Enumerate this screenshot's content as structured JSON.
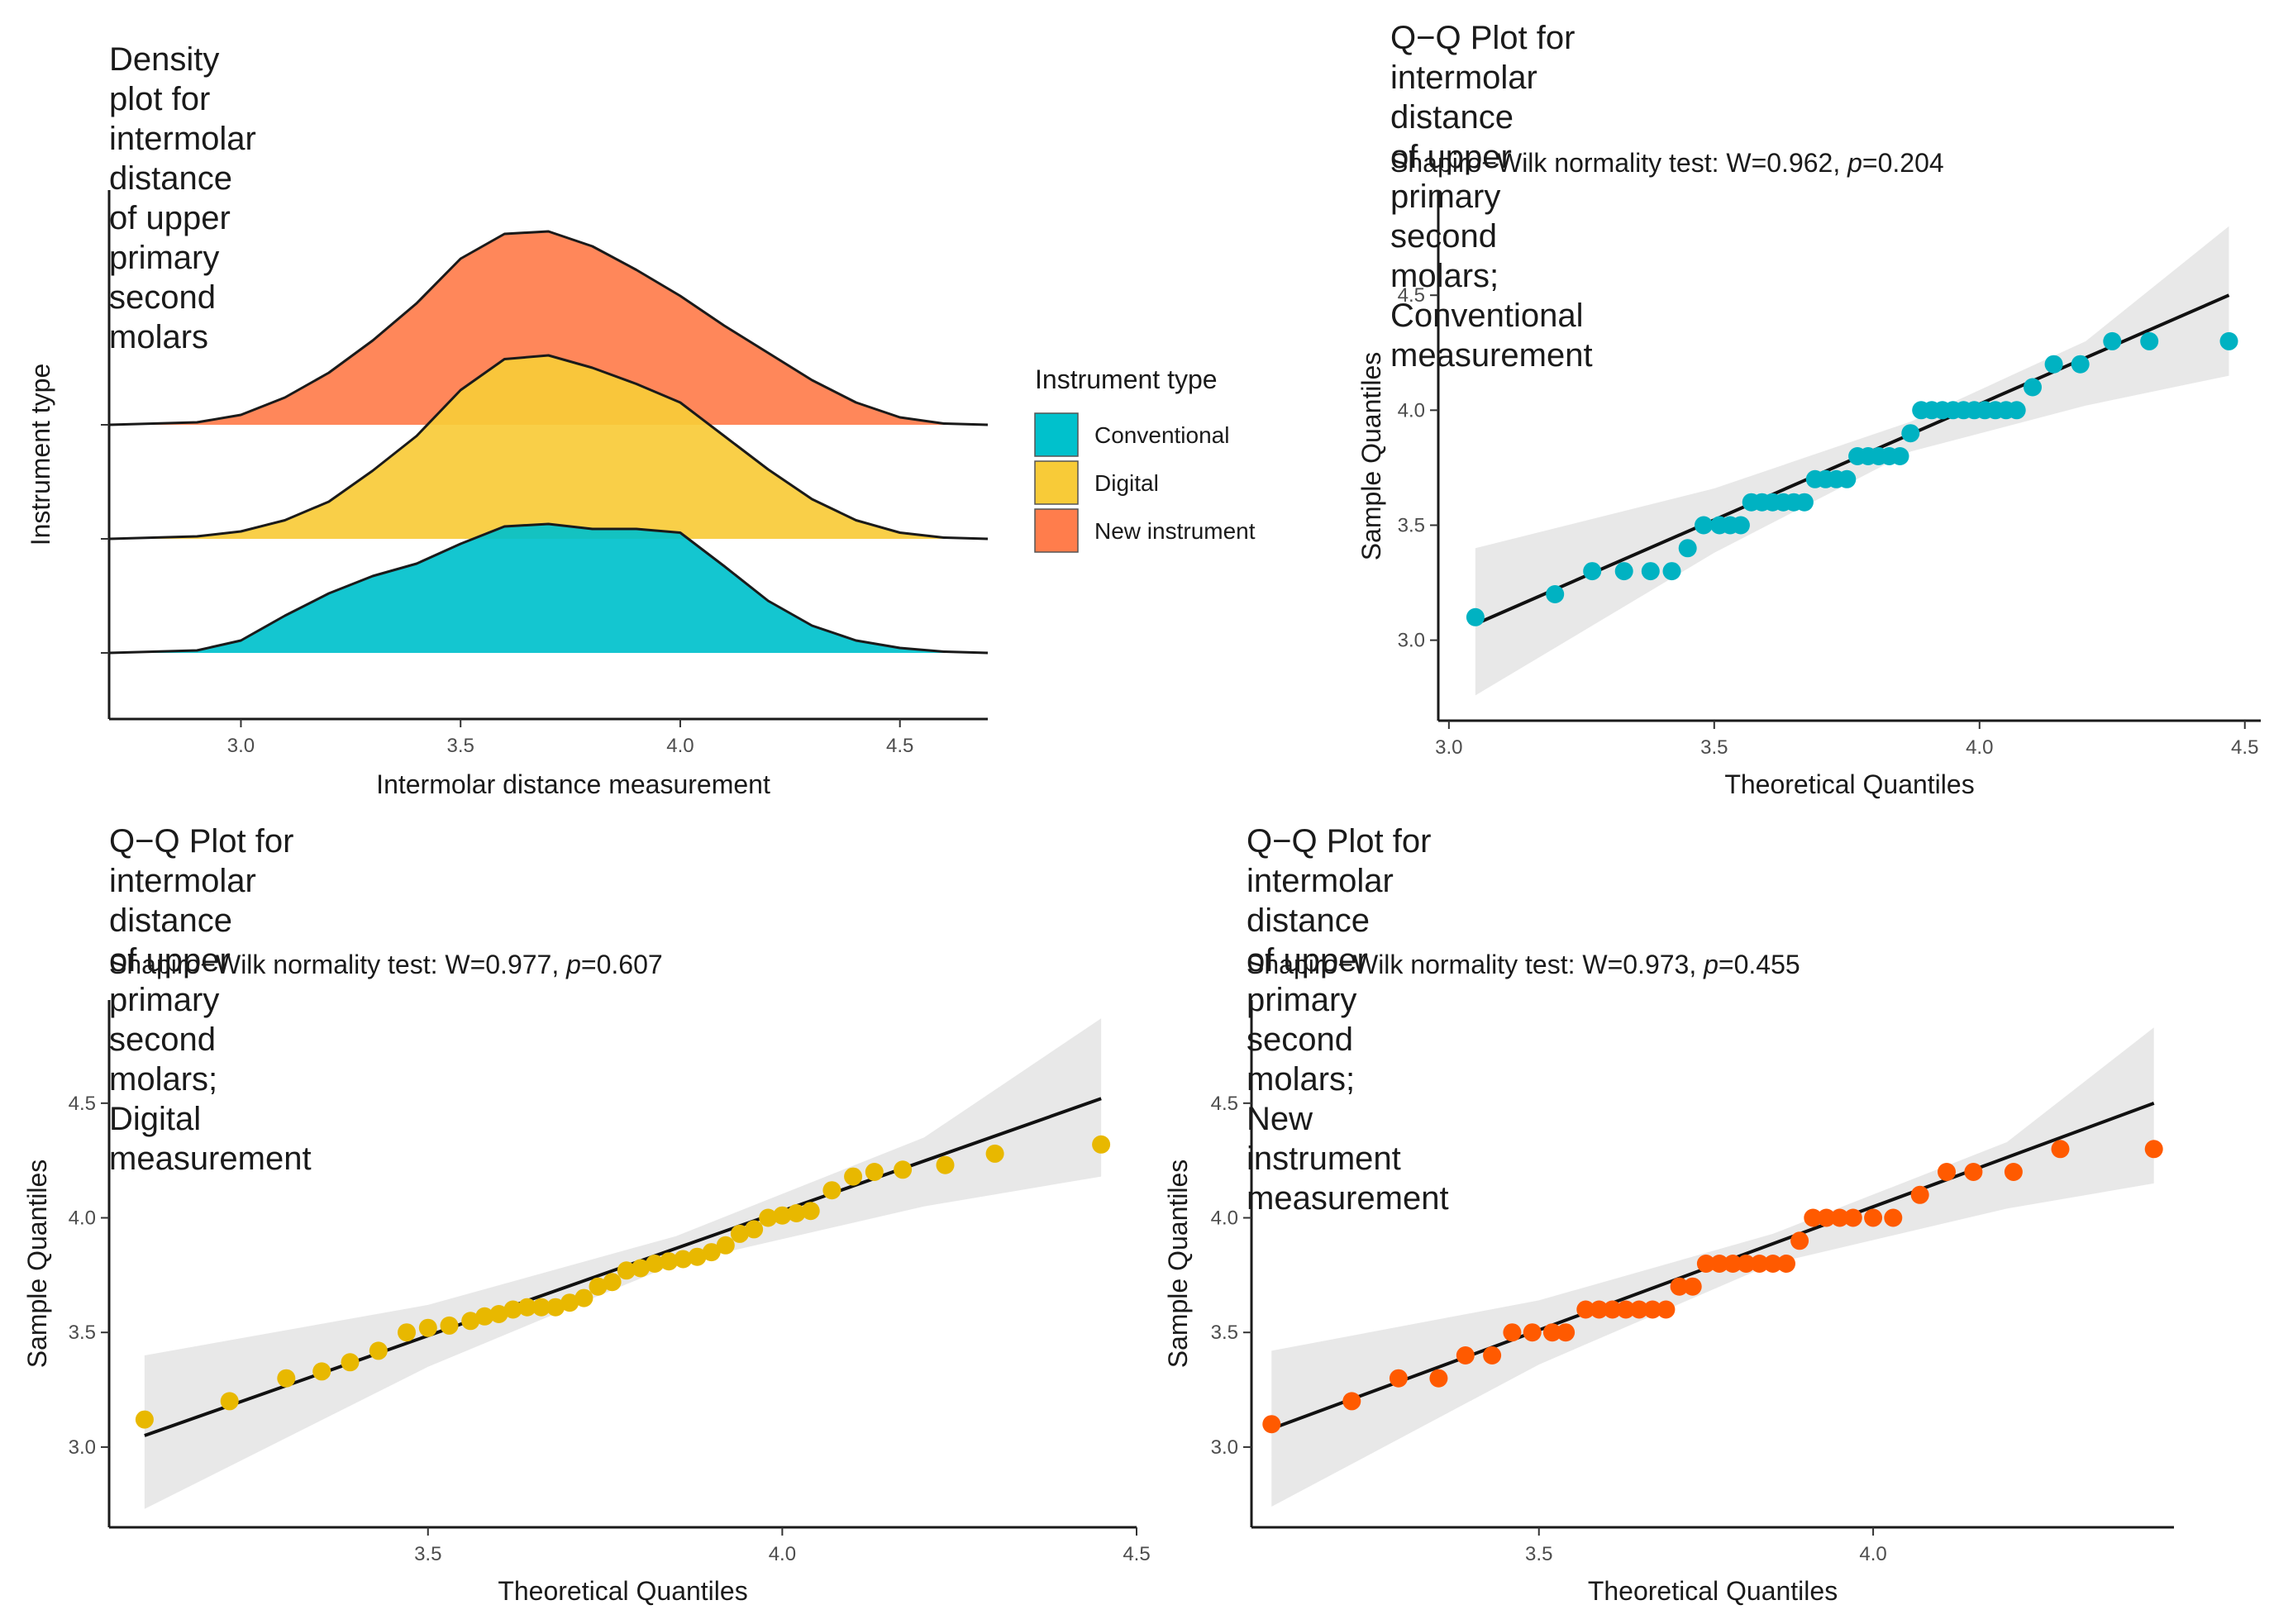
{
  "chart_data": [
    {
      "type": "density",
      "title": "Density plot for intermolar distance\nof upper primary second molars",
      "xlabel": "Intermolar distance measurement",
      "ylabel": "Instrument type",
      "xlim": [
        2.7,
        4.7
      ],
      "xticks": [
        "3.0",
        "3.5",
        "4.0",
        "4.5"
      ],
      "grid": false,
      "legend": {
        "title": "Instrument type",
        "placement": "right",
        "entries": [
          {
            "label": "Conventional",
            "color": "#00C1CC"
          },
          {
            "label": "Digital",
            "color": "#F8CB38"
          },
          {
            "label": "New instrument",
            "color": "#FF7D4C"
          }
        ]
      },
      "series": [
        {
          "name": "Conventional",
          "color": "#00C1CC",
          "x": [
            2.7,
            2.9,
            3.0,
            3.1,
            3.2,
            3.3,
            3.4,
            3.5,
            3.6,
            3.7,
            3.8,
            3.9,
            4.0,
            4.1,
            4.2,
            4.3,
            4.4,
            4.5,
            4.6,
            4.7
          ],
          "density": [
            0.0,
            0.02,
            0.1,
            0.3,
            0.48,
            0.62,
            0.72,
            0.88,
            1.02,
            1.04,
            1.0,
            1.0,
            0.97,
            0.7,
            0.42,
            0.22,
            0.1,
            0.04,
            0.01,
            0.0
          ]
        },
        {
          "name": "Digital",
          "color": "#F8CB38",
          "x": [
            2.7,
            2.9,
            3.0,
            3.1,
            3.2,
            3.3,
            3.4,
            3.5,
            3.6,
            3.7,
            3.8,
            3.9,
            4.0,
            4.1,
            4.2,
            4.3,
            4.4,
            4.5,
            4.6,
            4.7
          ],
          "density": [
            0.0,
            0.02,
            0.06,
            0.15,
            0.3,
            0.55,
            0.83,
            1.2,
            1.45,
            1.48,
            1.38,
            1.25,
            1.1,
            0.83,
            0.56,
            0.32,
            0.15,
            0.05,
            0.01,
            0.0
          ]
        },
        {
          "name": "New instrument",
          "color": "#FF7D4C",
          "x": [
            2.7,
            2.9,
            3.0,
            3.1,
            3.2,
            3.3,
            3.4,
            3.5,
            3.6,
            3.7,
            3.8,
            3.9,
            4.0,
            4.1,
            4.2,
            4.3,
            4.4,
            4.5,
            4.6,
            4.7
          ],
          "density": [
            0.0,
            0.02,
            0.08,
            0.22,
            0.42,
            0.68,
            0.98,
            1.34,
            1.54,
            1.56,
            1.44,
            1.25,
            1.04,
            0.8,
            0.58,
            0.36,
            0.18,
            0.06,
            0.01,
            0.0
          ]
        }
      ]
    },
    {
      "type": "scatter",
      "title": "Q−Q Plot  for intermolar distance\nof upper primary second molars;\nConventional measurement",
      "subtitle_prefix": "Shapiro−Wilk normality test: W=0.962, ",
      "subtitle_p_symbol": "p",
      "subtitle_p_value": "=0.204",
      "xlabel": "Theoretical Quantiles",
      "ylabel": "Sample Quantiles",
      "xlim": [
        2.98,
        4.53
      ],
      "ylim": [
        2.65,
        4.95
      ],
      "xticks": [
        "3.0",
        "3.5",
        "4.0",
        "4.5"
      ],
      "yticks": [
        "3.0",
        "3.5",
        "4.0",
        "4.5"
      ],
      "point_color": "#00B2C2",
      "line": {
        "x": [
          3.05,
          4.47
        ],
        "y": [
          3.07,
          4.5
        ]
      },
      "band": {
        "x": [
          3.05,
          3.5,
          3.87,
          4.2,
          4.47
        ],
        "lower": [
          2.76,
          3.38,
          3.82,
          4.02,
          4.15
        ],
        "upper": [
          3.4,
          3.66,
          3.95,
          4.3,
          4.8
        ]
      },
      "x": [
        3.05,
        3.2,
        3.27,
        3.33,
        3.38,
        3.42,
        3.45,
        3.48,
        3.51,
        3.53,
        3.55,
        3.57,
        3.59,
        3.61,
        3.63,
        3.65,
        3.67,
        3.69,
        3.71,
        3.73,
        3.75,
        3.77,
        3.79,
        3.81,
        3.83,
        3.85,
        3.87,
        3.89,
        3.91,
        3.93,
        3.95,
        3.97,
        3.99,
        4.01,
        4.03,
        4.05,
        4.07,
        4.1,
        4.14,
        4.19,
        4.25,
        4.32,
        4.47
      ],
      "y": [
        3.1,
        3.2,
        3.3,
        3.3,
        3.3,
        3.3,
        3.4,
        3.5,
        3.5,
        3.5,
        3.5,
        3.6,
        3.6,
        3.6,
        3.6,
        3.6,
        3.6,
        3.7,
        3.7,
        3.7,
        3.7,
        3.8,
        3.8,
        3.8,
        3.8,
        3.8,
        3.9,
        4.0,
        4.0,
        4.0,
        4.0,
        4.0,
        4.0,
        4.0,
        4.0,
        4.0,
        4.0,
        4.1,
        4.2,
        4.2,
        4.3,
        4.3,
        4.3
      ]
    },
    {
      "type": "scatter",
      "title": "Q−Q Plot  for intermolar distance\nof upper primary second molars;\nDigital measurement",
      "subtitle_prefix": "Shapiro−Wilk normality test: W=0.977, ",
      "subtitle_p_symbol": "p",
      "subtitle_p_value": "=0.607",
      "xlabel": "Theoretical Quantiles",
      "ylabel": "Sample Quantiles",
      "xlim": [
        3.05,
        4.5
      ],
      "ylim": [
        2.65,
        4.95
      ],
      "xticks": [
        "3.5",
        "4.0",
        "4.5"
      ],
      "yticks": [
        "3.0",
        "3.5",
        "4.0",
        "4.5"
      ],
      "point_color": "#E8B800",
      "line": {
        "x": [
          3.1,
          4.45
        ],
        "y": [
          3.05,
          4.52
        ]
      },
      "band": {
        "x": [
          3.1,
          3.5,
          3.85,
          4.2,
          4.45
        ],
        "lower": [
          2.73,
          3.35,
          3.8,
          4.05,
          4.18
        ],
        "upper": [
          3.4,
          3.62,
          3.92,
          4.35,
          4.87
        ]
      },
      "x": [
        3.1,
        3.22,
        3.3,
        3.35,
        3.39,
        3.43,
        3.47,
        3.5,
        3.53,
        3.56,
        3.58,
        3.6,
        3.62,
        3.64,
        3.66,
        3.68,
        3.7,
        3.72,
        3.74,
        3.76,
        3.78,
        3.8,
        3.82,
        3.84,
        3.86,
        3.88,
        3.9,
        3.92,
        3.94,
        3.96,
        3.98,
        4.0,
        4.02,
        4.04,
        4.07,
        4.1,
        4.13,
        4.17,
        4.23,
        4.3,
        4.45
      ],
      "y": [
        3.12,
        3.2,
        3.3,
        3.33,
        3.37,
        3.42,
        3.5,
        3.52,
        3.53,
        3.55,
        3.57,
        3.58,
        3.6,
        3.61,
        3.61,
        3.61,
        3.63,
        3.65,
        3.7,
        3.72,
        3.77,
        3.78,
        3.8,
        3.81,
        3.82,
        3.83,
        3.85,
        3.88,
        3.93,
        3.95,
        4.0,
        4.01,
        4.02,
        4.03,
        4.12,
        4.18,
        4.2,
        4.21,
        4.23,
        4.28,
        4.32
      ]
    },
    {
      "type": "scatter",
      "title": "Q−Q Plot  for intermolar distance\nof upper primary second molars;\nNew instrument measurement",
      "subtitle_prefix": "Shapiro−Wilk normality test: W=0.973, ",
      "subtitle_p_symbol": "p",
      "subtitle_p_value": "=0.455",
      "xlabel": "Theoretical Quantiles",
      "ylabel": "Sample Quantiles",
      "xlim": [
        3.07,
        4.45
      ],
      "ylim": [
        2.65,
        4.95
      ],
      "xticks": [
        "3.5",
        "4.0"
      ],
      "yticks": [
        "3.0",
        "3.5",
        "4.0",
        "4.5"
      ],
      "point_color": "#FF5A00",
      "line": {
        "x": [
          3.1,
          4.42
        ],
        "y": [
          3.08,
          4.5
        ]
      },
      "band": {
        "x": [
          3.1,
          3.5,
          3.85,
          4.2,
          4.42
        ],
        "lower": [
          2.74,
          3.36,
          3.8,
          4.04,
          4.15
        ],
        "upper": [
          3.42,
          3.64,
          3.93,
          4.33,
          4.83
        ]
      },
      "x": [
        3.1,
        3.22,
        3.29,
        3.35,
        3.39,
        3.43,
        3.46,
        3.49,
        3.52,
        3.54,
        3.57,
        3.59,
        3.61,
        3.63,
        3.65,
        3.67,
        3.69,
        3.71,
        3.73,
        3.75,
        3.77,
        3.79,
        3.81,
        3.83,
        3.85,
        3.87,
        3.89,
        3.91,
        3.93,
        3.95,
        3.97,
        4.0,
        4.03,
        4.07,
        4.11,
        4.15,
        4.21,
        4.28,
        4.42
      ],
      "y": [
        3.1,
        3.2,
        3.3,
        3.3,
        3.4,
        3.4,
        3.5,
        3.5,
        3.5,
        3.5,
        3.6,
        3.6,
        3.6,
        3.6,
        3.6,
        3.6,
        3.6,
        3.7,
        3.7,
        3.8,
        3.8,
        3.8,
        3.8,
        3.8,
        3.8,
        3.8,
        3.9,
        4.0,
        4.0,
        4.0,
        4.0,
        4.0,
        4.0,
        4.1,
        4.2,
        4.2,
        4.2,
        4.3,
        4.3
      ]
    }
  ]
}
